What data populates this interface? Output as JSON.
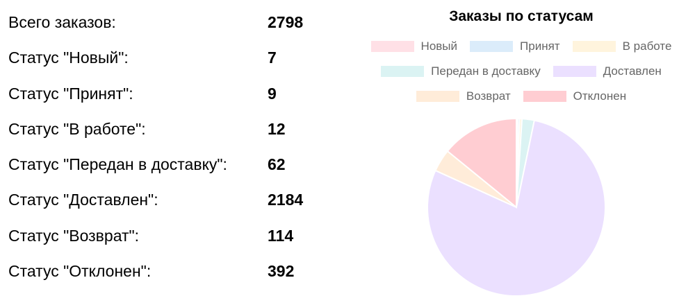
{
  "stats": [
    {
      "label": "Всего заказов:",
      "value": "2798"
    },
    {
      "label": "Статус \"Новый\":",
      "value": "7"
    },
    {
      "label": "Статус \"Принят\":",
      "value": "9"
    },
    {
      "label": "Статус \"В работе\":",
      "value": "12"
    },
    {
      "label": "Статус \"Передан в доставку\":",
      "value": "62"
    },
    {
      "label": "Статус \"Доставлен\":",
      "value": "2184"
    },
    {
      "label": "Статус \"Возврат\":",
      "value": "114"
    },
    {
      "label": "Статус \"Отклонен\":",
      "value": "392"
    }
  ],
  "chart_data": {
    "type": "pie",
    "title": "Заказы по статусам",
    "categories": [
      "Новый",
      "Принят",
      "В работе",
      "Передан в доставку",
      "Доставлен",
      "Возврат",
      "Отклонен"
    ],
    "values": [
      7,
      9,
      12,
      62,
      2184,
      114,
      392
    ],
    "colors": [
      "#ffe0e6",
      "#dbecfa",
      "#fff4dd",
      "#dbf3f3",
      "#ebe0ff",
      "#ffecd9",
      "#ffcdd2"
    ],
    "legend_position": "top"
  }
}
